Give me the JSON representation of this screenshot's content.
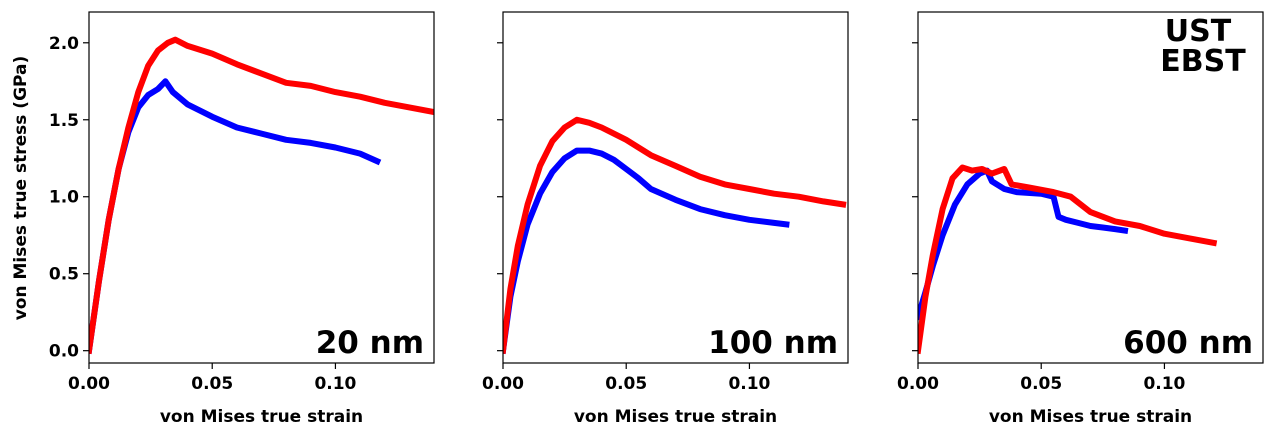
{
  "ylabel": "von Mises true stress (GPa)",
  "colors": {
    "UST": "#0000ff",
    "EBST": "#ff0000"
  },
  "legend": [
    {
      "label": "UST",
      "color": "#0000ff"
    },
    {
      "label": "EBST",
      "color": "#ff0000"
    }
  ],
  "chart_data": [
    {
      "type": "scatter",
      "annotation": "20 nm",
      "xlabel": "von Mises true strain",
      "ylabel": "von Mises true stress (GPa)",
      "xlim": [
        0,
        0.14
      ],
      "ylim": [
        -0.08,
        2.2
      ],
      "xticks": [
        "0.00",
        "0.05",
        "0.10"
      ],
      "xtick_values": [
        0,
        0.05,
        0.1
      ],
      "yticks": [
        "0.0",
        "0.5",
        "1.0",
        "1.5",
        "2.0"
      ],
      "ytick_values": [
        0,
        0.5,
        1.0,
        1.5,
        2.0
      ],
      "series": [
        {
          "name": "UST",
          "x": [
            0,
            0.004,
            0.008,
            0.012,
            0.016,
            0.02,
            0.024,
            0.028,
            0.031,
            0.034,
            0.04,
            0.05,
            0.06,
            0.07,
            0.08,
            0.09,
            0.1,
            0.11,
            0.117
          ],
          "y": [
            0,
            0.45,
            0.85,
            1.18,
            1.42,
            1.58,
            1.66,
            1.7,
            1.75,
            1.68,
            1.6,
            1.52,
            1.45,
            1.41,
            1.37,
            1.35,
            1.32,
            1.28,
            1.23
          ]
        },
        {
          "name": "EBST",
          "x": [
            0,
            0.004,
            0.008,
            0.012,
            0.016,
            0.02,
            0.024,
            0.028,
            0.032,
            0.035,
            0.04,
            0.05,
            0.06,
            0.07,
            0.08,
            0.09,
            0.1,
            0.11,
            0.12,
            0.13,
            0.14
          ],
          "y": [
            0,
            0.45,
            0.85,
            1.18,
            1.45,
            1.68,
            1.85,
            1.95,
            2.0,
            2.02,
            1.98,
            1.93,
            1.86,
            1.8,
            1.74,
            1.72,
            1.68,
            1.65,
            1.61,
            1.58,
            1.55
          ]
        }
      ]
    },
    {
      "type": "scatter",
      "annotation": "100 nm",
      "xlabel": "von Mises true strain",
      "xlim": [
        0,
        0.14
      ],
      "ylim": [
        -0.08,
        2.2
      ],
      "xticks": [
        "0.00",
        "0.05",
        "0.10"
      ],
      "xtick_values": [
        0,
        0.05,
        0.1
      ],
      "yticks": [],
      "ytick_values": [
        0,
        0.5,
        1.0,
        1.5,
        2.0
      ],
      "series": [
        {
          "name": "UST",
          "x": [
            0,
            0.003,
            0.006,
            0.01,
            0.015,
            0.02,
            0.025,
            0.03,
            0.035,
            0.04,
            0.045,
            0.05,
            0.055,
            0.06,
            0.07,
            0.08,
            0.09,
            0.1,
            0.11,
            0.115
          ],
          "y": [
            0,
            0.35,
            0.58,
            0.82,
            1.02,
            1.16,
            1.25,
            1.3,
            1.3,
            1.28,
            1.24,
            1.18,
            1.12,
            1.05,
            0.98,
            0.92,
            0.88,
            0.85,
            0.83,
            0.82
          ]
        },
        {
          "name": "EBST",
          "x": [
            0,
            0.003,
            0.006,
            0.01,
            0.015,
            0.02,
            0.025,
            0.03,
            0.035,
            0.04,
            0.05,
            0.06,
            0.07,
            0.08,
            0.09,
            0.1,
            0.11,
            0.12,
            0.13,
            0.138
          ],
          "y": [
            0,
            0.4,
            0.68,
            0.95,
            1.2,
            1.36,
            1.45,
            1.5,
            1.48,
            1.45,
            1.37,
            1.27,
            1.2,
            1.13,
            1.08,
            1.05,
            1.02,
            1.0,
            0.97,
            0.95
          ]
        }
      ]
    },
    {
      "type": "scatter",
      "annotation": "600 nm",
      "xlabel": "von Mises true strain",
      "xlim": [
        0,
        0.14
      ],
      "ylim": [
        -0.08,
        2.2
      ],
      "xticks": [
        "0.00",
        "0.05",
        "0.10"
      ],
      "xtick_values": [
        0,
        0.05,
        0.1
      ],
      "yticks": [],
      "ytick_values": [
        0,
        0.5,
        1.0,
        1.5,
        2.0
      ],
      "series": [
        {
          "name": "UST",
          "x": [
            0,
            0.003,
            0.006,
            0.01,
            0.015,
            0.02,
            0.025,
            0.028,
            0.03,
            0.035,
            0.04,
            0.05,
            0.055,
            0.057,
            0.06,
            0.065,
            0.07,
            0.075,
            0.08,
            0.084
          ],
          "y": [
            0.22,
            0.38,
            0.55,
            0.75,
            0.95,
            1.08,
            1.15,
            1.17,
            1.1,
            1.05,
            1.03,
            1.02,
            1.0,
            0.87,
            0.85,
            0.83,
            0.81,
            0.8,
            0.79,
            0.78
          ]
        },
        {
          "name": "EBST",
          "x": [
            0,
            0.003,
            0.006,
            0.01,
            0.014,
            0.018,
            0.022,
            0.026,
            0.03,
            0.035,
            0.038,
            0.045,
            0.055,
            0.062,
            0.07,
            0.08,
            0.09,
            0.1,
            0.11,
            0.12
          ],
          "y": [
            0,
            0.35,
            0.62,
            0.92,
            1.12,
            1.19,
            1.17,
            1.18,
            1.15,
            1.18,
            1.08,
            1.06,
            1.03,
            1.0,
            0.9,
            0.84,
            0.81,
            0.76,
            0.73,
            0.7
          ]
        }
      ]
    }
  ]
}
